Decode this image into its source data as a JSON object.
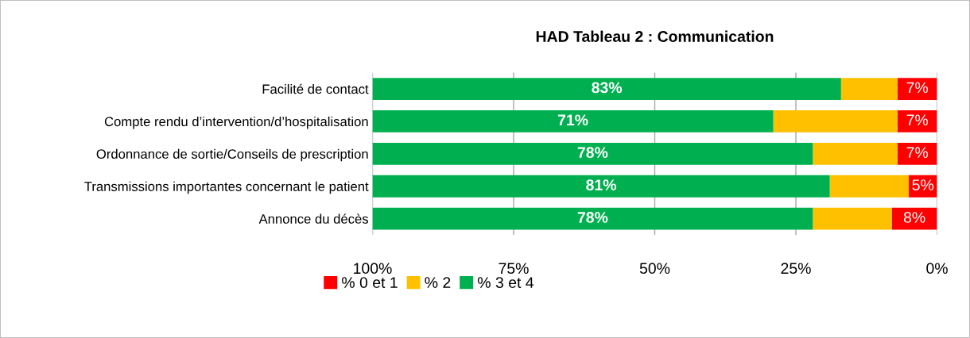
{
  "chart_data": {
    "type": "bar",
    "orientation": "horizontal",
    "stacked": true,
    "title": "HAD Tableau 2 : Communication",
    "categories": [
      "Facilité de contact",
      "Compte rendu d’intervention/d’hospitalisation",
      "Ordonnance de sortie/Conseils de prescription",
      "Transmissions importantes concernant le patient",
      "Annonce du décès"
    ],
    "series": [
      {
        "name": "% 0 et 1",
        "color": "#ff0000",
        "values": [
          7,
          7,
          7,
          5,
          8
        ],
        "value_labels": [
          "7%",
          "7%",
          "7%",
          "5%",
          "8%"
        ]
      },
      {
        "name": "% 2",
        "color": "#ffc000",
        "values": [
          10,
          22,
          15,
          14,
          14
        ],
        "value_labels": [
          null,
          null,
          null,
          null,
          null
        ]
      },
      {
        "name": "% 3 et 4",
        "color": "#00b050",
        "values": [
          83,
          71,
          78,
          81,
          78
        ],
        "value_labels": [
          "83%",
          "71%",
          "78%",
          "81%",
          "78%"
        ]
      }
    ],
    "xlim": [
      100,
      0
    ],
    "xticks": [
      {
        "value": 100,
        "label": "100%"
      },
      {
        "value": 75,
        "label": "75%"
      },
      {
        "value": 50,
        "label": "50%"
      },
      {
        "value": 25,
        "label": "25%"
      },
      {
        "value": 0,
        "label": "0%"
      }
    ],
    "grid": "x",
    "legend": "bottom"
  }
}
